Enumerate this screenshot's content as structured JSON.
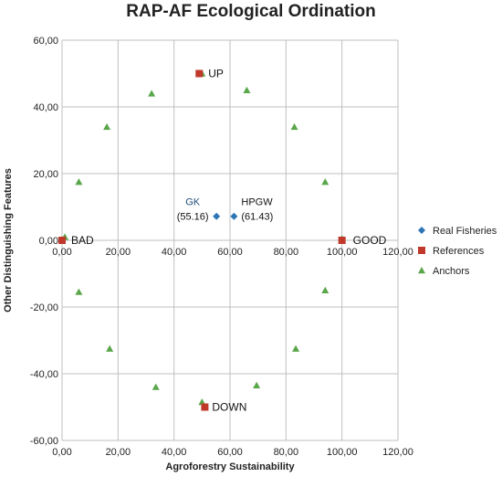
{
  "chart_data": {
    "type": "scatter",
    "title": "RAP-AF Ecological Ordination",
    "xlabel": "Agroforestry Sustainability",
    "ylabel": "Other Distinguishing Features",
    "xlim": [
      0,
      120
    ],
    "ylim": [
      -60,
      60
    ],
    "x_ticks": [
      "0,00",
      "20,00",
      "40,00",
      "60,00",
      "80,00",
      "100,00",
      "120,00"
    ],
    "y_ticks": [
      "-60,00",
      "-40,00",
      "-20,00",
      "0,00",
      "20,00",
      "40,00",
      "60,00"
    ],
    "grid": true,
    "legend_position": "right",
    "colors": {
      "real": "#2e75b6",
      "references": "#c0392b",
      "anchors": "#5aa64a",
      "grid": "#bfbfbf"
    },
    "series": [
      {
        "name": "Real Fisheries",
        "marker": "diamond",
        "points": [
          {
            "x": 55.16,
            "y": 7.2,
            "label": "GK",
            "sublabel": "(55.16)"
          },
          {
            "x": 61.43,
            "y": 7.2,
            "label": "HPGW",
            "sublabel": "(61.43)"
          }
        ]
      },
      {
        "name": "References",
        "marker": "square",
        "points": [
          {
            "x": 0,
            "y": 0,
            "label": "BAD"
          },
          {
            "x": 100,
            "y": 0,
            "label": "GOOD"
          },
          {
            "x": 49,
            "y": 50,
            "label": "UP"
          },
          {
            "x": 51,
            "y": -50,
            "label": "DOWN"
          }
        ]
      },
      {
        "name": "Anchors",
        "marker": "triangle",
        "points": [
          {
            "x": 1,
            "y": 1
          },
          {
            "x": 6,
            "y": 17.5
          },
          {
            "x": 16,
            "y": 34
          },
          {
            "x": 32,
            "y": 44
          },
          {
            "x": 50,
            "y": 50
          },
          {
            "x": 66,
            "y": 45
          },
          {
            "x": 83,
            "y": 34
          },
          {
            "x": 94,
            "y": 17.5
          },
          {
            "x": 100,
            "y": 0.5
          },
          {
            "x": 94,
            "y": -15
          },
          {
            "x": 83.5,
            "y": -32.5
          },
          {
            "x": 69.5,
            "y": -43.5
          },
          {
            "x": 50,
            "y": -48.5
          },
          {
            "x": 33.5,
            "y": -44
          },
          {
            "x": 17,
            "y": -32.5
          },
          {
            "x": 6,
            "y": -15.5
          }
        ]
      }
    ]
  }
}
